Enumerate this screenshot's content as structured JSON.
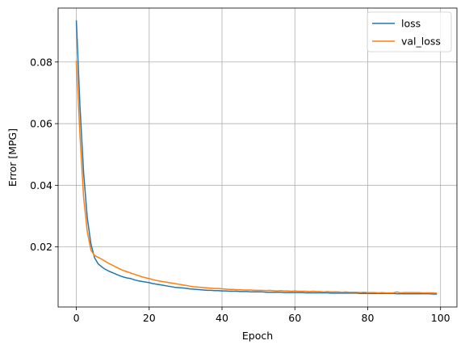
{
  "chart_data": {
    "type": "line",
    "xlabel": "Epoch",
    "ylabel": "Error [MPG]",
    "xlim": [
      -5,
      104.5
    ],
    "ylim": [
      0.0005,
      0.0975
    ],
    "xticks": [
      0,
      20,
      40,
      60,
      80,
      100
    ],
    "yticks": [
      0.02,
      0.04,
      0.06,
      0.08
    ],
    "ytick_labels": [
      "0.02",
      "0.04",
      "0.06",
      "0.08"
    ],
    "grid": true,
    "legend_placement": "top-right",
    "series": [
      {
        "name": "loss",
        "color": "#1f77b4",
        "x": [
          0,
          1,
          2,
          3,
          4,
          5,
          6,
          7,
          8,
          9,
          10,
          11,
          12,
          13,
          14,
          15,
          16,
          17,
          18,
          19,
          20,
          21,
          22,
          23,
          24,
          25,
          26,
          27,
          28,
          29,
          30,
          31,
          32,
          33,
          34,
          35,
          36,
          37,
          38,
          39,
          40,
          41,
          42,
          43,
          44,
          45,
          46,
          47,
          48,
          49,
          50,
          51,
          52,
          53,
          54,
          55,
          56,
          57,
          58,
          59,
          60,
          61,
          62,
          63,
          64,
          65,
          66,
          67,
          68,
          69,
          70,
          71,
          72,
          73,
          74,
          75,
          76,
          77,
          78,
          79,
          80,
          81,
          82,
          83,
          84,
          85,
          86,
          87,
          88,
          89,
          90,
          91,
          92,
          93,
          94,
          95,
          96,
          97,
          98,
          99
        ],
        "values": [
          0.0935,
          0.0655,
          0.044,
          0.0295,
          0.021,
          0.0165,
          0.0145,
          0.0135,
          0.0127,
          0.0121,
          0.0116,
          0.0111,
          0.0106,
          0.0102,
          0.0099,
          0.0097,
          0.0093,
          0.009,
          0.0088,
          0.0086,
          0.0084,
          0.0081,
          0.0079,
          0.0077,
          0.0075,
          0.0073,
          0.0071,
          0.0069,
          0.0068,
          0.0067,
          0.0066,
          0.0064,
          0.0063,
          0.0062,
          0.0061,
          0.006,
          0.0059,
          0.0059,
          0.0058,
          0.0058,
          0.0057,
          0.0057,
          0.0056,
          0.0056,
          0.0056,
          0.0055,
          0.0055,
          0.0055,
          0.0054,
          0.0054,
          0.0054,
          0.0054,
          0.0053,
          0.0053,
          0.0053,
          0.0053,
          0.0053,
          0.0052,
          0.0052,
          0.0052,
          0.0052,
          0.0052,
          0.0052,
          0.0051,
          0.0051,
          0.0051,
          0.0051,
          0.0051,
          0.0051,
          0.0051,
          0.005,
          0.005,
          0.005,
          0.005,
          0.005,
          0.005,
          0.005,
          0.005,
          0.0049,
          0.0049,
          0.0049,
          0.0049,
          0.0049,
          0.0049,
          0.0049,
          0.0049,
          0.0049,
          0.0049,
          0.0048,
          0.0048,
          0.0048,
          0.0048,
          0.0048,
          0.0048,
          0.0048,
          0.0048,
          0.0048,
          0.0048,
          0.0047,
          0.0047
        ]
      },
      {
        "name": "val_loss",
        "color": "#ff7f0e",
        "x": [
          0,
          1,
          2,
          3,
          4,
          5,
          6,
          7,
          8,
          9,
          10,
          11,
          12,
          13,
          14,
          15,
          16,
          17,
          18,
          19,
          20,
          21,
          22,
          23,
          24,
          25,
          26,
          27,
          28,
          29,
          30,
          31,
          32,
          33,
          34,
          35,
          36,
          37,
          38,
          39,
          40,
          41,
          42,
          43,
          44,
          45,
          46,
          47,
          48,
          49,
          50,
          51,
          52,
          53,
          54,
          55,
          56,
          57,
          58,
          59,
          60,
          61,
          62,
          63,
          64,
          65,
          66,
          67,
          68,
          69,
          70,
          71,
          72,
          73,
          74,
          75,
          76,
          77,
          78,
          79,
          80,
          81,
          82,
          83,
          84,
          85,
          86,
          87,
          88,
          89,
          90,
          91,
          92,
          93,
          94,
          95,
          96,
          97,
          98,
          99
        ],
        "values": [
          0.0805,
          0.056,
          0.036,
          0.025,
          0.019,
          0.0172,
          0.0166,
          0.016,
          0.0153,
          0.0146,
          0.014,
          0.0134,
          0.0128,
          0.0123,
          0.0119,
          0.0115,
          0.0111,
          0.0107,
          0.0103,
          0.01,
          0.0097,
          0.0094,
          0.0091,
          0.0089,
          0.0087,
          0.0085,
          0.0083,
          0.0081,
          0.0079,
          0.0077,
          0.0075,
          0.0073,
          0.0071,
          0.007,
          0.0069,
          0.0068,
          0.0067,
          0.0066,
          0.0065,
          0.0065,
          0.0064,
          0.0063,
          0.0062,
          0.0062,
          0.0061,
          0.0061,
          0.006,
          0.006,
          0.006,
          0.0059,
          0.0059,
          0.0059,
          0.0058,
          0.0059,
          0.0058,
          0.0057,
          0.0058,
          0.0057,
          0.0057,
          0.0056,
          0.0057,
          0.0056,
          0.0056,
          0.0056,
          0.0055,
          0.0056,
          0.0055,
          0.0055,
          0.0054,
          0.0055,
          0.0054,
          0.0054,
          0.0054,
          0.0053,
          0.0054,
          0.0053,
          0.0053,
          0.0053,
          0.0052,
          0.0053,
          0.0052,
          0.0052,
          0.0052,
          0.0051,
          0.0052,
          0.0051,
          0.0051,
          0.0051,
          0.0054,
          0.0051,
          0.0052,
          0.0052,
          0.0052,
          0.0052,
          0.0052,
          0.0051,
          0.0051,
          0.0051,
          0.0051,
          0.005
        ]
      }
    ]
  }
}
